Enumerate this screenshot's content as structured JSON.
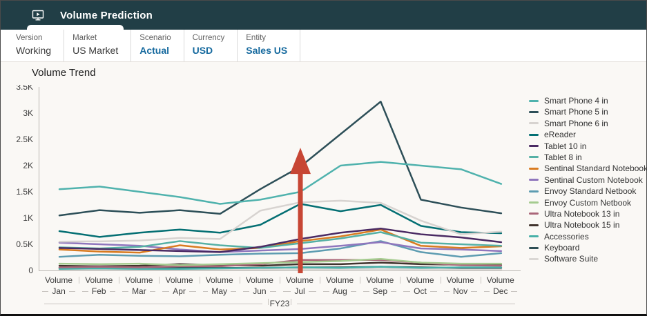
{
  "header": {
    "title": "Volume Prediction",
    "icon": "screen-play-icon"
  },
  "pov": {
    "items": [
      {
        "label": "Version",
        "value": "Working"
      },
      {
        "label": "Market",
        "value": "US Market"
      },
      {
        "label": "Scenario",
        "value": "Actual"
      },
      {
        "label": "Currency",
        "value": "USD"
      },
      {
        "label": "Entity",
        "value": "Sales US"
      }
    ]
  },
  "chart": {
    "title": "Volume Trend"
  },
  "chart_data": {
    "type": "line",
    "title": "Volume Trend",
    "x_sublabel": "Volume",
    "x_group_label": "FY23",
    "categories": [
      "Jan",
      "Feb",
      "Mar",
      "Apr",
      "May",
      "Jun",
      "Jul",
      "Aug",
      "Sep",
      "Oct",
      "Nov",
      "Dec"
    ],
    "ylim": [
      0,
      3500
    ],
    "ytick_labels": [
      "0",
      "0.5K",
      "1K",
      "1.5K",
      "2K",
      "2.5K",
      "3K",
      "3.5K"
    ],
    "grid": false,
    "legend_position": "right",
    "series": [
      {
        "name": "Smart Phone 4 in",
        "color": "#4fb2ad",
        "values": [
          1550,
          1600,
          1500,
          1400,
          1270,
          1350,
          1500,
          2000,
          2070,
          2000,
          1930,
          1650
        ]
      },
      {
        "name": "Smart Phone 5 in",
        "color": "#2d4f58",
        "values": [
          1050,
          1150,
          1100,
          1150,
          1080,
          1550,
          1980,
          2600,
          3220,
          1350,
          1200,
          1090
        ]
      },
      {
        "name": "Smart Phone 6 in",
        "color": "#d7d3d0",
        "values": [
          550,
          555,
          570,
          620,
          600,
          1140,
          1300,
          1330,
          1290,
          950,
          690,
          740
        ]
      },
      {
        "name": "eReader",
        "color": "#046f73",
        "values": [
          750,
          640,
          720,
          780,
          720,
          870,
          1270,
          1130,
          1250,
          850,
          730,
          710
        ]
      },
      {
        "name": "Tablet 10 in",
        "color": "#4a2a63",
        "values": [
          430,
          410,
          390,
          370,
          350,
          450,
          600,
          720,
          800,
          690,
          630,
          540
        ]
      },
      {
        "name": "Tablet 8 in",
        "color": "#55b0a5",
        "values": [
          440,
          420,
          450,
          560,
          480,
          430,
          520,
          610,
          730,
          530,
          500,
          470
        ]
      },
      {
        "name": "Sentinal Standard Notebook",
        "color": "#d97b20",
        "values": [
          400,
          360,
          340,
          480,
          400,
          430,
          560,
          650,
          780,
          470,
          430,
          460
        ]
      },
      {
        "name": "Sentinal Custom Notebook",
        "color": "#8f76bd",
        "values": [
          530,
          500,
          470,
          400,
          350,
          380,
          410,
          470,
          540,
          420,
          400,
          370
        ]
      },
      {
        "name": "Envoy Standard Netbook",
        "color": "#5d9cb1",
        "values": [
          260,
          300,
          280,
          270,
          300,
          320,
          330,
          420,
          560,
          350,
          260,
          330
        ]
      },
      {
        "name": "Envoy Custom Netbook",
        "color": "#a5cb8f",
        "values": [
          130,
          120,
          130,
          100,
          120,
          140,
          160,
          180,
          220,
          150,
          130,
          130
        ]
      },
      {
        "name": "Ultra Notebook 13 in",
        "color": "#aa6679",
        "values": [
          60,
          70,
          60,
          80,
          80,
          120,
          200,
          200,
          200,
          150,
          100,
          90
        ]
      },
      {
        "name": "Ultra Notebook 15 in",
        "color": "#40332d",
        "values": [
          90,
          80,
          90,
          120,
          100,
          90,
          120,
          120,
          150,
          120,
          110,
          100
        ]
      },
      {
        "name": "Accessories",
        "color": "#47b0a8",
        "values": [
          30,
          40,
          30,
          30,
          40,
          50,
          60,
          50,
          70,
          50,
          60,
          60
        ]
      },
      {
        "name": "Keyboard",
        "color": "#2e4e55",
        "values": [
          50,
          50,
          50,
          50,
          50,
          50,
          60,
          60,
          70,
          60,
          50,
          50
        ]
      },
      {
        "name": "Software Suite",
        "color": "#dad7d4",
        "values": [
          20,
          20,
          20,
          20,
          20,
          20,
          25,
          25,
          30,
          25,
          20,
          20
        ]
      }
    ],
    "annotation": {
      "type": "arrow-up",
      "category": "Jul",
      "color": "#c74634"
    }
  }
}
